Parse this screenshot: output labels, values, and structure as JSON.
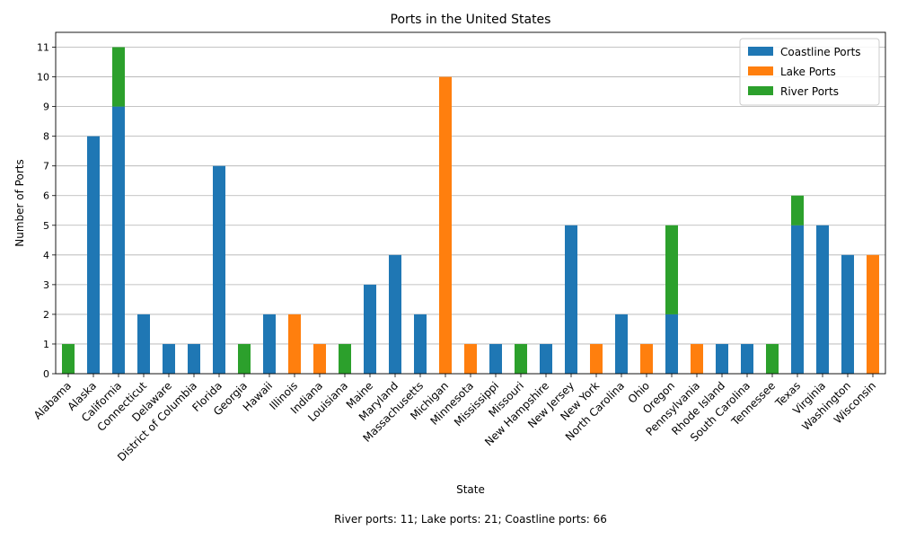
{
  "chart_data": {
    "type": "bar",
    "stacked": true,
    "title": "Ports in the United States",
    "xlabel": "State",
    "ylabel": "Number of Ports",
    "ylim": [
      0,
      11.5
    ],
    "yticks": [
      0,
      1,
      2,
      3,
      4,
      5,
      6,
      7,
      8,
      9,
      10,
      11
    ],
    "grid": "y",
    "legend_position": "top-right",
    "categories": [
      "Alabama",
      "Alaska",
      "California",
      "Connecticut",
      "Delaware",
      "District of Columbia",
      "Florida",
      "Georgia",
      "Hawaii",
      "Illinois",
      "Indiana",
      "Louisiana",
      "Maine",
      "Maryland",
      "Massachusetts",
      "Michigan",
      "Minnesota",
      "Mississippi",
      "Missouri",
      "New Hampshire",
      "New Jersey",
      "New York",
      "North Carolina",
      "Ohio",
      "Oregon",
      "Pennsylvania",
      "Rhode Island",
      "South Carolina",
      "Tennessee",
      "Texas",
      "Virginia",
      "Washington",
      "Wisconsin"
    ],
    "series": [
      {
        "name": "Coastline Ports",
        "color": "#1f77b4",
        "values": [
          0,
          8,
          9,
          2,
          1,
          1,
          7,
          0,
          2,
          0,
          0,
          0,
          3,
          4,
          2,
          0,
          0,
          1,
          0,
          1,
          5,
          0,
          2,
          0,
          2,
          0,
          1,
          1,
          0,
          5,
          5,
          4,
          0
        ]
      },
      {
        "name": "Lake Ports",
        "color": "#ff7f0e",
        "values": [
          0,
          0,
          0,
          0,
          0,
          0,
          0,
          0,
          0,
          2,
          1,
          0,
          0,
          0,
          0,
          10,
          1,
          0,
          0,
          0,
          0,
          1,
          0,
          1,
          0,
          1,
          0,
          0,
          0,
          0,
          0,
          0,
          4
        ]
      },
      {
        "name": "River Ports",
        "color": "#2ca02c",
        "values": [
          1,
          0,
          2,
          0,
          0,
          0,
          0,
          1,
          0,
          0,
          0,
          1,
          0,
          0,
          0,
          0,
          0,
          0,
          1,
          0,
          0,
          0,
          0,
          0,
          3,
          0,
          0,
          0,
          1,
          1,
          0,
          0,
          0
        ]
      }
    ],
    "footnote": "River ports: 11; Lake ports: 21; Coastline ports: 66"
  }
}
